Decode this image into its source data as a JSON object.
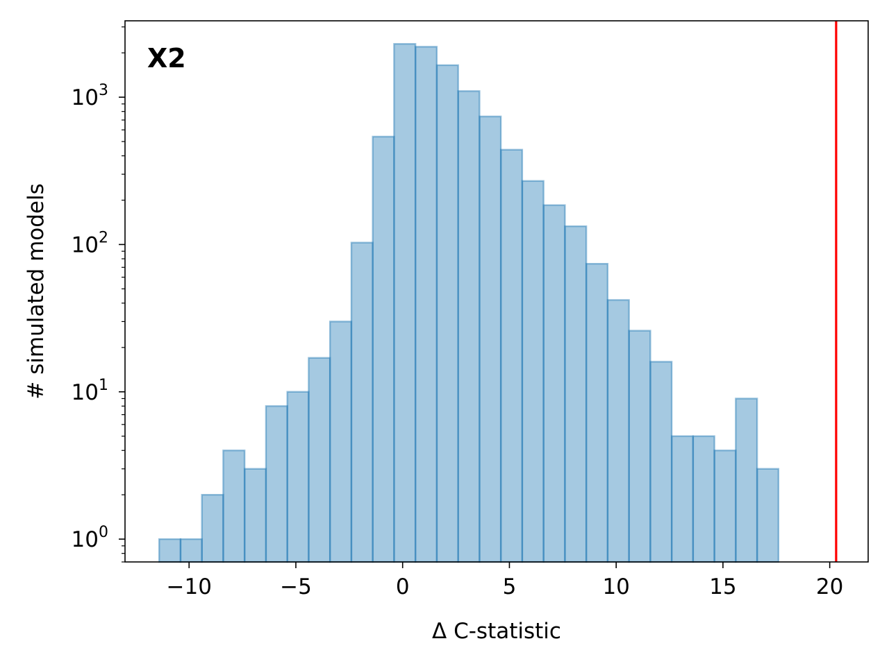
{
  "chart_data": {
    "type": "bar",
    "subtype": "histogram",
    "panel_label": "X2",
    "xlabel": "Δ C-statistic",
    "ylabel": "# simulated models",
    "xlim": [
      -13,
      21.8
    ],
    "ylim": [
      0.7,
      3300
    ],
    "yscale": "log",
    "grid": false,
    "bar_color": "#1f77b4",
    "bar_alpha": 0.4,
    "bar_edge_color": "#1f77b4",
    "x_ticks": [
      -10,
      -5,
      0,
      5,
      10,
      15,
      20
    ],
    "x_tick_labels": [
      "−10",
      "−5",
      "0",
      "5",
      "10",
      "15",
      "20"
    ],
    "y_ticks": [
      {
        "value": 1,
        "base": "10",
        "exp": "0"
      },
      {
        "value": 10,
        "base": "10",
        "exp": "1"
      },
      {
        "value": 100,
        "base": "10",
        "exp": "2"
      },
      {
        "value": 1000,
        "base": "10",
        "exp": "3"
      }
    ],
    "bin_edges": [
      -11.4,
      -10.4,
      -9.4,
      -8.4,
      -7.4,
      -6.4,
      -5.4,
      -4.4,
      -3.4,
      -2.4,
      -1.4,
      -0.4,
      0.6,
      1.6,
      2.6,
      3.6,
      4.6,
      5.6,
      6.6,
      7.6,
      8.6,
      9.6,
      10.6,
      11.6,
      12.6,
      13.6,
      14.6,
      15.6,
      16.6,
      17.6
    ],
    "counts": [
      1,
      1,
      2,
      4,
      3,
      8,
      10,
      17,
      30,
      103,
      540,
      2300,
      2200,
      1650,
      1100,
      740,
      440,
      270,
      185,
      133,
      74,
      42,
      26,
      16,
      5,
      5,
      4,
      9,
      3
    ],
    "reference_line": {
      "x": 20.3,
      "color": "#ff0000"
    }
  }
}
